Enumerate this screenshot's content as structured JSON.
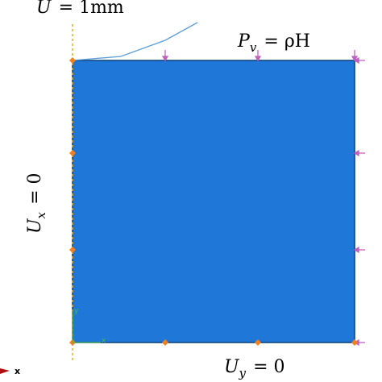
{
  "labels": {
    "displacement": {
      "symbol": "U",
      "rest": "= 1mm"
    },
    "pressure": {
      "symbol": "P",
      "subscript": "v",
      "rest": "= ρH"
    },
    "left_bc": {
      "symbol": "U",
      "subscript": "x",
      "rest": "= 0"
    },
    "bottom_bc": {
      "symbol": "U",
      "subscript": "y",
      "rest": "= 0"
    }
  },
  "axes": {
    "local_y": "y",
    "local_x": "x",
    "global_x": "x"
  }
}
